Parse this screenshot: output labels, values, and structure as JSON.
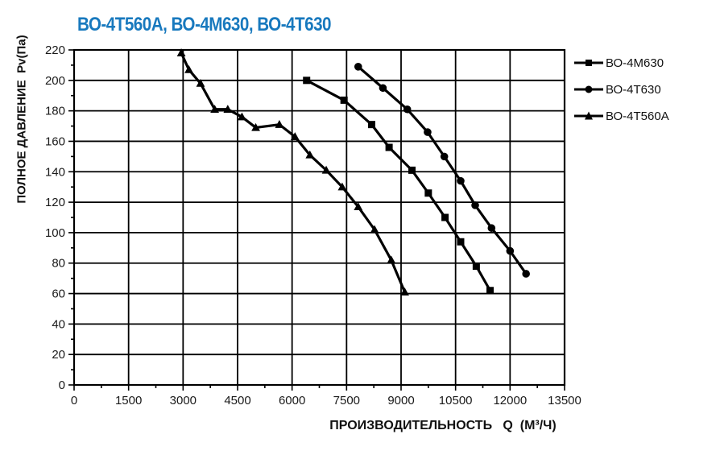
{
  "chart_title": {
    "text": "ВО-4Т560А, ВО-4М630, ВО-4Т630",
    "color": "#1879BE"
  },
  "chart_data": {
    "type": "line",
    "title": "ВО-4Т560А, ВО-4М630, ВО-4Т630",
    "xlabel": "ПРОИЗВОДИТЕЛЬНОСТЬ   Q  (М³/Ч)",
    "ylabel": "ПОЛНОЕ ДАВЛЕНИЕ  Pv(Па)",
    "xlim": [
      0,
      13500
    ],
    "ylim": [
      0,
      220
    ],
    "x_major_ticks": [
      0,
      1500,
      3000,
      4500,
      6000,
      7500,
      9000,
      10500,
      12000,
      13500
    ],
    "x_minor_step": 750,
    "y_major_ticks": [
      0,
      20,
      40,
      60,
      80,
      100,
      120,
      140,
      160,
      180,
      200,
      220
    ],
    "y_minor_step": 10,
    "grid": true,
    "grid_color": "#000000",
    "line_color": "#000000",
    "legend_position": "right-top",
    "series": [
      {
        "name": "ВО-4М630",
        "marker": "square",
        "points": [
          [
            6400,
            200
          ],
          [
            7430,
            187
          ],
          [
            8190,
            171
          ],
          [
            8670,
            156
          ],
          [
            9300,
            141
          ],
          [
            9750,
            126
          ],
          [
            10210,
            110
          ],
          [
            10640,
            94
          ],
          [
            11070,
            78
          ],
          [
            11450,
            62
          ]
        ]
      },
      {
        "name": "ВО-4Т630",
        "marker": "circle",
        "points": [
          [
            7820,
            209
          ],
          [
            8500,
            195
          ],
          [
            9170,
            181
          ],
          [
            9730,
            166
          ],
          [
            10190,
            150
          ],
          [
            10640,
            134
          ],
          [
            11040,
            118
          ],
          [
            11490,
            103
          ],
          [
            12000,
            88
          ],
          [
            12440,
            73
          ]
        ]
      },
      {
        "name": "ВО-4Т560А",
        "marker": "triangle",
        "points": [
          [
            2950,
            218
          ],
          [
            3160,
            207
          ],
          [
            3480,
            198
          ],
          [
            3870,
            181
          ],
          [
            4230,
            181
          ],
          [
            4620,
            176
          ],
          [
            5000,
            169
          ],
          [
            5650,
            171
          ],
          [
            6080,
            163
          ],
          [
            6490,
            151
          ],
          [
            6940,
            141
          ],
          [
            7380,
            130
          ],
          [
            7820,
            117
          ],
          [
            8270,
            102
          ],
          [
            8730,
            82
          ],
          [
            9100,
            61
          ]
        ]
      }
    ]
  },
  "legend": {
    "items": [
      {
        "label": "ВО-4М630",
        "marker": "square"
      },
      {
        "label": "ВО-4Т630",
        "marker": "circle"
      },
      {
        "label": "ВО-4Т560А",
        "marker": "triangle"
      }
    ]
  }
}
